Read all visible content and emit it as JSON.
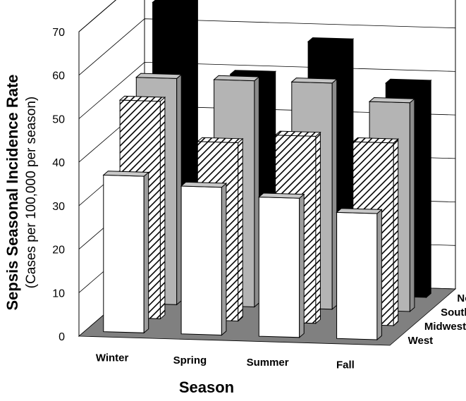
{
  "chart_data": {
    "type": "bar",
    "style": "3d-grouped-depth",
    "ylabel": "Sepsis Seasonal Incidence Rate",
    "ylabel_sub": "(Cases per 100,000 per season)",
    "xlabel": "Season",
    "ylim": [
      0,
      70
    ],
    "yticks": [
      "0",
      "10",
      "20",
      "30",
      "40",
      "50",
      "60",
      "70"
    ],
    "categories": [
      "Winter",
      "Spring",
      "Summer",
      "Fall"
    ],
    "series": [
      {
        "name": "Northeast",
        "fill": "black",
        "values": [
          66,
          50,
          58,
          49
        ]
      },
      {
        "name": "South",
        "fill": "gray",
        "values": [
          52,
          52,
          52,
          48
        ]
      },
      {
        "name": "Midwest",
        "fill": "hatched",
        "values": [
          50,
          41,
          43,
          42
        ]
      },
      {
        "name": "West",
        "fill": "white",
        "values": [
          36,
          34,
          32,
          29
        ]
      }
    ],
    "colors": {
      "black": "#000000",
      "gray": "#b4b4b4",
      "white": "#ffffff",
      "floor": "#808080"
    },
    "grid": true,
    "legend": "depth-axis labels at right"
  }
}
